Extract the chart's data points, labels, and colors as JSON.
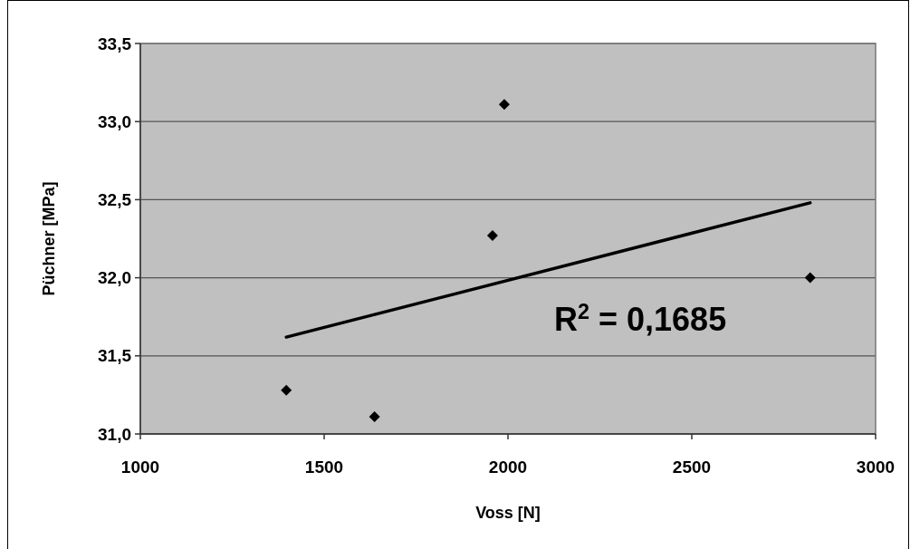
{
  "chart_data": {
    "type": "scatter",
    "xlabel": "Voss [N]",
    "ylabel": "Püchner [MPa]",
    "xlim": [
      1000,
      3000
    ],
    "xticks": [
      1000,
      1500,
      2000,
      2500,
      3000
    ],
    "ylim": [
      31,
      33.5
    ],
    "yticks": [
      {
        "value": 31,
        "label": "31,0"
      },
      {
        "value": 31.5,
        "label": "31,5"
      },
      {
        "value": 32,
        "label": "32,0"
      },
      {
        "value": 32.5,
        "label": "32,5"
      },
      {
        "value": 33,
        "label": "33,0"
      },
      {
        "value": 33.5,
        "label": "33,5"
      }
    ],
    "grid": "y",
    "marker": "diamond",
    "series": [
      {
        "color": "#000000",
        "x": [
          1397,
          1637,
          1958,
          1990,
          2822
        ],
        "values": [
          31.28,
          31.11,
          32.27,
          33.11,
          32.0
        ]
      },
      {
        "type": "line",
        "color": "#000000",
        "x": [
          1397,
          2822
        ],
        "values": [
          31.62,
          32.48
        ],
        "line_style": "solid",
        "marker": "none"
      }
    ],
    "annotations": [
      "R$^{2}$ = 0,1685"
    ]
  }
}
